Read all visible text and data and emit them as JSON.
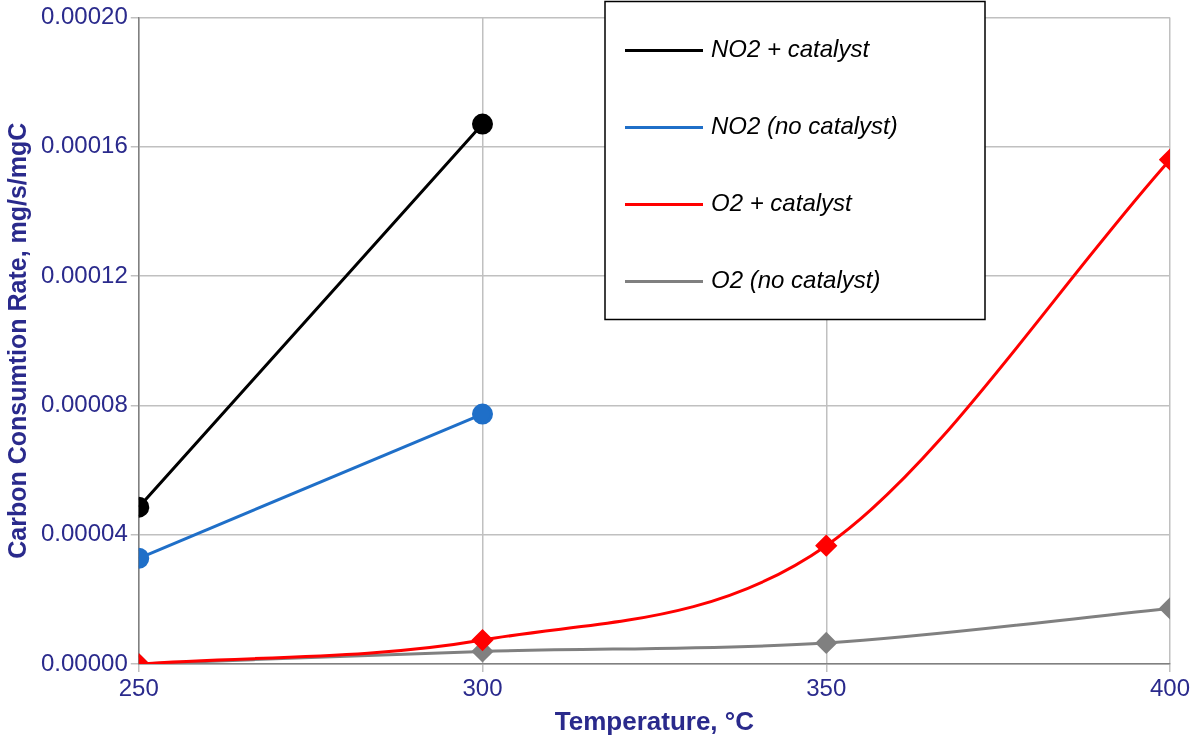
{
  "chart_data": {
    "type": "line",
    "xlabel": "Temperature, °C",
    "ylabel": "Carbon Consumtion Rate, mg/s/mgC",
    "x": [
      250,
      300,
      350,
      400
    ],
    "series": [
      {
        "name": "NO2 + catalyst",
        "color": "#000000",
        "marker": "circle",
        "values": [
          4.85e-05,
          0.000167,
          null,
          null
        ]
      },
      {
        "name": "NO2 (no catalyst)",
        "color": "#1f6fc8",
        "marker": "circle",
        "values": [
          3.27e-05,
          7.73e-05,
          null,
          null
        ]
      },
      {
        "name": "O2 + catalyst",
        "color": "#ff0000",
        "marker": "diamond",
        "values": [
          0,
          7.4e-06,
          3.66e-05,
          0.000156
        ]
      },
      {
        "name": "O2 (no catalyst)",
        "color": "#808080",
        "marker": "diamond",
        "values": [
          0,
          3.9e-06,
          6.5e-06,
          1.72e-05
        ]
      }
    ],
    "xlim": [
      250,
      400
    ],
    "xticks": [
      250,
      300,
      350,
      400
    ],
    "ylim": [
      0,
      0.0002
    ],
    "yticks": [
      {
        "value": 0,
        "label": "0.00000"
      },
      {
        "value": 4e-05,
        "label": "0.00004"
      },
      {
        "value": 8e-05,
        "label": "0.00008"
      },
      {
        "value": 0.00012,
        "label": "0.00012"
      },
      {
        "value": 0.00016,
        "label": "0.00016"
      },
      {
        "value": 0.0002,
        "label": "0.00020"
      }
    ],
    "grid": true,
    "legend": "top right",
    "line_style": "solid"
  }
}
